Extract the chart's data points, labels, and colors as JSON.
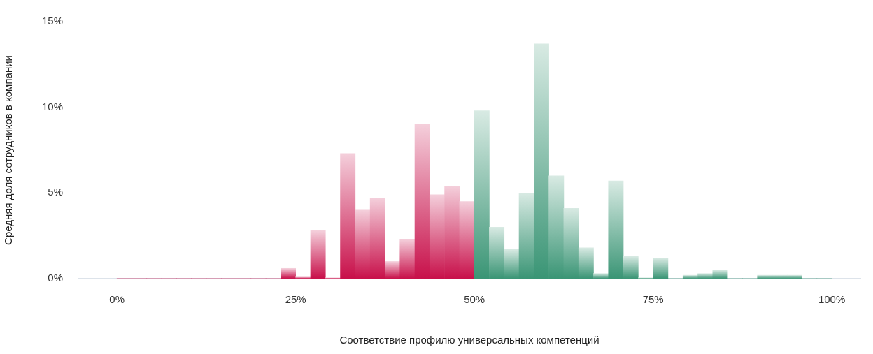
{
  "chart_data": {
    "type": "histogram",
    "xlabel": "Соответствие профилю универсальных компетенций",
    "ylabel": "Средняя доля сотрудников в компании",
    "bins": [
      0,
      2.08,
      4.17,
      6.25,
      8.33,
      10.42,
      12.5,
      14.58,
      16.67,
      18.75,
      20.83,
      22.92,
      25,
      27.08,
      29.17,
      31.25,
      33.33,
      35.42,
      37.5,
      39.58,
      41.67,
      43.75,
      45.83,
      47.92,
      50,
      52.08,
      54.17,
      56.25,
      58.33,
      60.42,
      62.5,
      64.58,
      66.67,
      68.75,
      70.83,
      72.92,
      75,
      77.08,
      79.17,
      81.25,
      83.33,
      85.42,
      87.5,
      89.58,
      91.67,
      93.75,
      95.83,
      97.92,
      100
    ],
    "values": [
      0,
      0,
      0,
      0,
      0,
      0,
      0,
      0,
      0,
      0,
      0,
      0.6,
      0.1,
      2.8,
      0.05,
      7.3,
      4.0,
      4.7,
      1.0,
      2.3,
      9.0,
      4.9,
      5.4,
      4.5,
      9.8,
      3.0,
      1.7,
      5.0,
      13.7,
      6.0,
      4.1,
      1.8,
      0.3,
      5.7,
      1.3,
      0.05,
      1.2,
      0,
      0.2,
      0.3,
      0.5,
      0,
      0,
      0.2,
      0.2,
      0.2,
      0,
      0
    ],
    "colors": [
      "#c8104a",
      "#c8104a",
      "#c8104a",
      "#c8104a",
      "#c8104a",
      "#c8104a",
      "#c8104a",
      "#c8104a",
      "#c8104a",
      "#c8104a",
      "#c8104a",
      "#c8104a",
      "#c8104a",
      "#c8104a",
      "#c8104a",
      "#c8104a",
      "#c8104a",
      "#c8104a",
      "#c8104a",
      "#c8104a",
      "#c8104a",
      "#c8104a",
      "#c8104a",
      "#c8104a",
      "#3a9575",
      "#3a9575",
      "#3a9575",
      "#3a9575",
      "#3a9575",
      "#3a9575",
      "#3a9575",
      "#3a9575",
      "#3a9575",
      "#3a9575",
      "#3a9575",
      "#3a9575",
      "#3a9575",
      "#3a9575",
      "#3a9575",
      "#3a9575",
      "#3a9575",
      "#3a9575",
      "#3a9575",
      "#3a9575",
      "#3a9575",
      "#3a9575",
      "#3a9575",
      "#3a9575"
    ],
    "xlim": [
      -5.4,
      104
    ],
    "xticks": [
      {
        "value": 0,
        "label": "0%"
      },
      {
        "value": 25,
        "label": "25%"
      },
      {
        "value": 50,
        "label": "50%"
      },
      {
        "value": 75,
        "label": "75%"
      },
      {
        "value": 100,
        "label": "100%"
      }
    ],
    "ylim": [
      0,
      15
    ],
    "yticks": [
      {
        "value": 0,
        "label": "0%"
      },
      {
        "value": 5,
        "label": "5%"
      },
      {
        "value": 10,
        "label": "10%"
      },
      {
        "value": 15,
        "label": "15%"
      }
    ],
    "grid": false,
    "legend": false
  }
}
